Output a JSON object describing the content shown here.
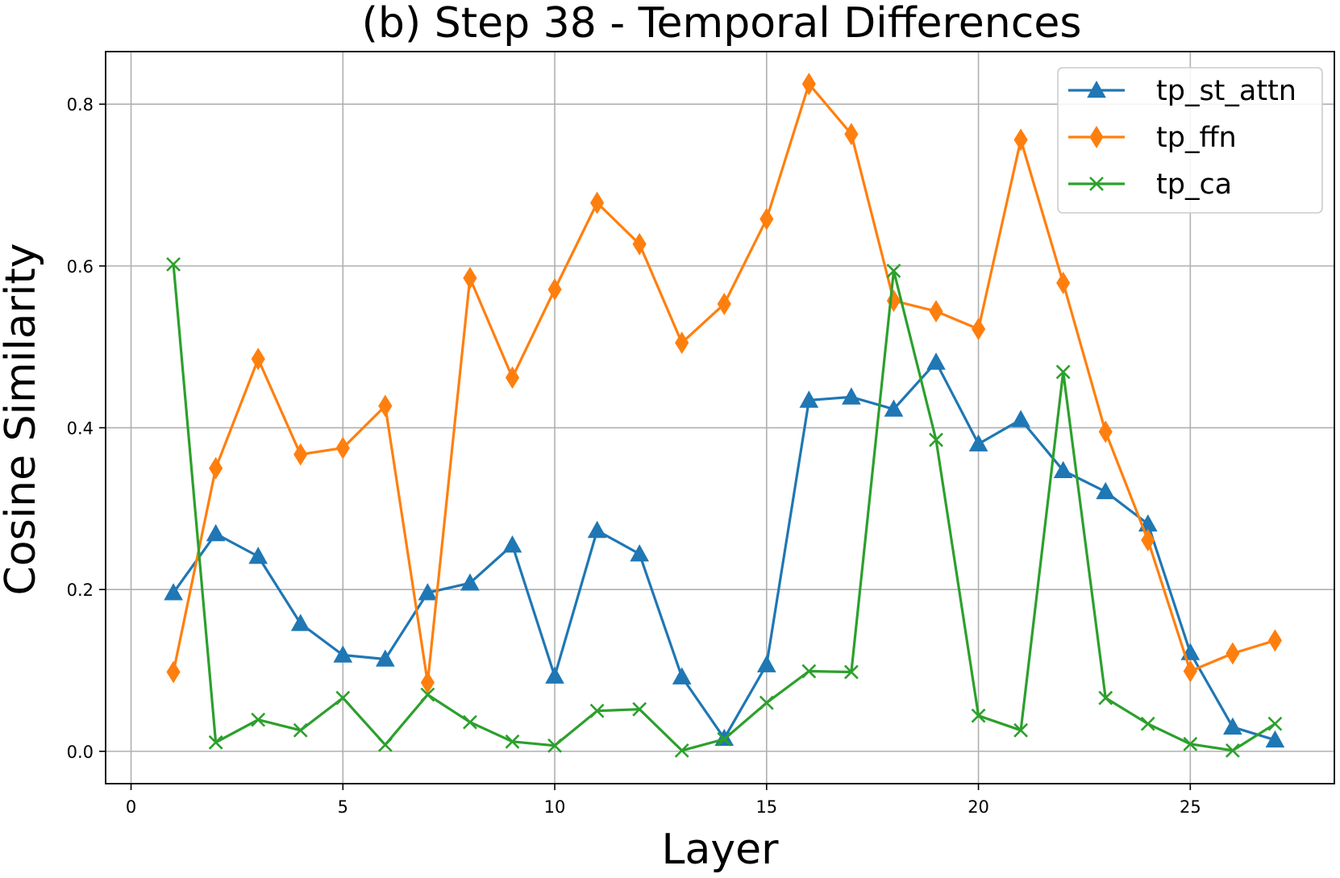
{
  "chart_data": {
    "type": "line",
    "title": "(b) Step 38 - Temporal Differences",
    "xlabel": "Layer",
    "ylabel": "Cosine Similarity",
    "xlim": [
      -0.6,
      28.4
    ],
    "ylim": [
      -0.04,
      0.865
    ],
    "xticks": [
      0,
      5,
      10,
      15,
      20,
      25
    ],
    "yticks": [
      0.0,
      0.2,
      0.4,
      0.6,
      0.8
    ],
    "xtick_labels": [
      "0",
      "5",
      "10",
      "15",
      "20",
      "25"
    ],
    "ytick_labels": [
      "0.0",
      "0.2",
      "0.4",
      "0.6",
      "0.8"
    ],
    "grid": true,
    "legend_position": "top-right",
    "x": [
      1,
      2,
      3,
      4,
      5,
      6,
      7,
      8,
      9,
      10,
      11,
      12,
      13,
      14,
      15,
      16,
      17,
      18,
      19,
      20,
      21,
      22,
      23,
      24,
      25,
      26,
      27
    ],
    "series": [
      {
        "name": "tp_st_attn",
        "color": "#1f77b4",
        "marker": "triangle",
        "values": [
          0.196,
          0.269,
          0.241,
          0.158,
          0.119,
          0.114,
          0.196,
          0.208,
          0.255,
          0.093,
          0.273,
          0.244,
          0.092,
          0.016,
          0.107,
          0.434,
          0.438,
          0.423,
          0.481,
          0.38,
          0.41,
          0.347,
          0.321,
          0.281,
          0.122,
          0.03,
          0.014
        ]
      },
      {
        "name": "tp_ffn",
        "color": "#ff7f0e",
        "marker": "diamond",
        "values": [
          0.098,
          0.35,
          0.485,
          0.367,
          0.375,
          0.427,
          0.085,
          0.585,
          0.462,
          0.571,
          0.678,
          0.627,
          0.505,
          0.553,
          0.658,
          0.825,
          0.763,
          0.557,
          0.544,
          0.522,
          0.756,
          0.579,
          0.395,
          0.261,
          0.099,
          0.121,
          0.137
        ]
      },
      {
        "name": "tp_ca",
        "color": "#2ca02c",
        "marker": "x",
        "values": [
          0.602,
          0.011,
          0.039,
          0.026,
          0.066,
          0.008,
          0.07,
          0.036,
          0.012,
          0.007,
          0.05,
          0.052,
          0.001,
          0.015,
          0.06,
          0.099,
          0.098,
          0.594,
          0.385,
          0.044,
          0.026,
          0.469,
          0.066,
          0.034,
          0.009,
          0.001,
          0.034
        ]
      }
    ]
  }
}
